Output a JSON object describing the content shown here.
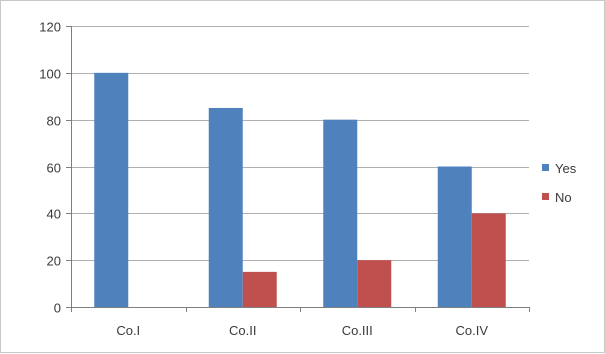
{
  "chart_data": {
    "type": "bar",
    "categories": [
      "Co.I",
      "Co.II",
      "Co.III",
      "Co.IV"
    ],
    "series": [
      {
        "name": "Yes",
        "values": [
          100,
          85,
          80,
          60
        ],
        "color": "#4f81bd"
      },
      {
        "name": "No",
        "values": [
          0,
          15,
          20,
          40
        ],
        "color": "#c0504d"
      }
    ],
    "ylim": [
      0,
      120
    ],
    "yticks": [
      0,
      20,
      40,
      60,
      80,
      100,
      120
    ],
    "title": "",
    "xlabel": "",
    "ylabel": "",
    "grid": true,
    "legend_position": "right"
  }
}
